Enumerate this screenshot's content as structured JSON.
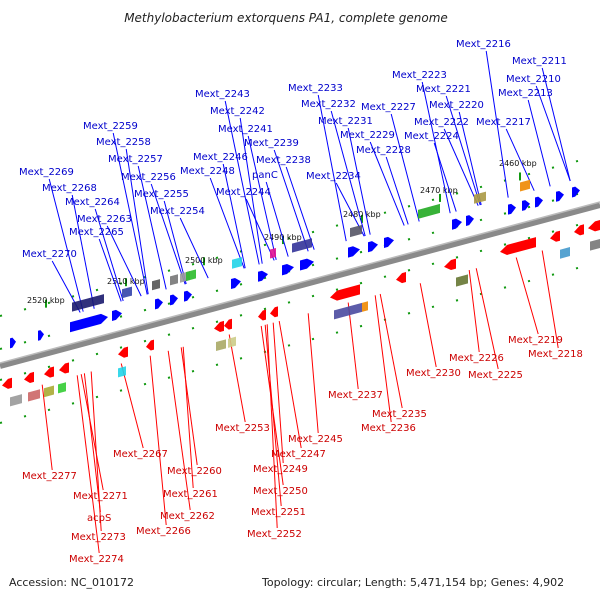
{
  "title": "Methylobacterium extorquens PA1, complete genome",
  "footer": {
    "accession": "Accession: NC_010172",
    "summary": "Topology: circular; Length: 5,471,154 bp; Genes: 4,902"
  },
  "colors": {
    "forward": "#0000ff",
    "reverse": "#ff0000",
    "backbone": "#888888",
    "tick": "#119911",
    "label_blue": "#0000cc",
    "label_red": "#cc0000"
  },
  "scale_labels": [
    "2460 kbp",
    "2470 kbp",
    "2480 kbp",
    "2490 kbp",
    "2500 kbp",
    "2510 kbp",
    "2520 kbp"
  ],
  "forward_genes": [
    "Mext_2216",
    "Mext_2211",
    "Mext_2210",
    "Mext_2213",
    "Mext_2223",
    "Mext_2221",
    "Mext_2220",
    "Mext_2217",
    "Mext_2222",
    "Mext_2224",
    "Mext_2227",
    "Mext_2229",
    "Mext_2228",
    "Mext_2233",
    "Mext_2232",
    "Mext_2231",
    "Mext_2234",
    "Mext_2243",
    "Mext_2242",
    "Mext_2241",
    "Mext_2239",
    "Mext_2246",
    "Mext_2238",
    "Mext_2248",
    "panC",
    "Mext_2244",
    "Mext_2259",
    "Mext_2258",
    "Mext_2257",
    "Mext_2256",
    "Mext_2255",
    "Mext_2254",
    "Mext_2269",
    "Mext_2268",
    "Mext_2264",
    "Mext_2263",
    "Mext_2265",
    "Mext_2270"
  ],
  "reverse_genes": [
    "Mext_2219",
    "Mext_2218",
    "Mext_2226",
    "Mext_2225",
    "Mext_2230",
    "Mext_2237",
    "Mext_2235",
    "Mext_2236",
    "Mext_2245",
    "Mext_2247",
    "Mext_2253",
    "Mext_2249",
    "Mext_2250",
    "Mext_2251",
    "Mext_2252",
    "Mext_2267",
    "Mext_2260",
    "Mext_2261",
    "Mext_2262",
    "Mext_2266",
    "Mext_2277",
    "Mext_2271",
    "acpS",
    "Mext_2273",
    "Mext_2274"
  ]
}
